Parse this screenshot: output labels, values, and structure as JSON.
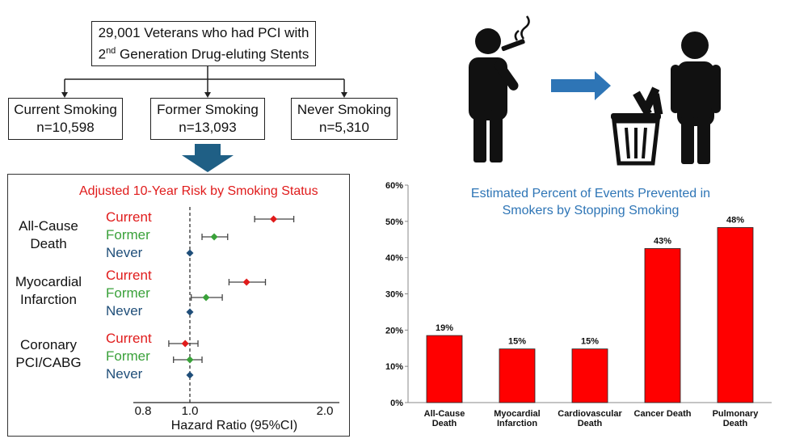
{
  "flow": {
    "top_line1": "29,001 Veterans who had PCI with",
    "top_line2_pre": "2",
    "top_line2_sup": "nd",
    "top_line2_post": " Generation Drug-eluting Stents",
    "groups": [
      {
        "name": "Current Smoking",
        "n": "n=10,598"
      },
      {
        "name": "Former Smoking",
        "n": "n=13,093"
      },
      {
        "name": "Never Smoking",
        "n": "n=5,310"
      }
    ],
    "arrow_color": "#1f5f85"
  },
  "forest": {
    "title": "Adjusted 10-Year Risk by Smoking Status",
    "xlabel": "Hazard Ratio (95%CI)",
    "xticks": [
      "0.8",
      "1.0",
      "2.0"
    ],
    "colors": {
      "Current": "#e01b1b",
      "Former": "#3aa13a",
      "Never": "#1f4e79"
    },
    "groups": [
      {
        "label1": "All-Cause",
        "label2": "Death",
        "rows": [
          {
            "status": "Current",
            "hr": 1.62,
            "lo": 1.48,
            "hi": 1.77
          },
          {
            "status": "Former",
            "hr": 1.18,
            "lo": 1.09,
            "hi": 1.28
          },
          {
            "status": "Never",
            "hr": 1.0,
            "lo": 1.0,
            "hi": 1.0
          }
        ]
      },
      {
        "label1": "Myocardial",
        "label2": "Infarction",
        "rows": [
          {
            "status": "Current",
            "hr": 1.42,
            "lo": 1.29,
            "hi": 1.56
          },
          {
            "status": "Former",
            "hr": 1.12,
            "lo": 1.01,
            "hi": 1.24
          },
          {
            "status": "Never",
            "hr": 1.0,
            "lo": 1.0,
            "hi": 1.0
          }
        ]
      },
      {
        "label1": "Coronary",
        "label2": "PCI/CABG",
        "rows": [
          {
            "status": "Current",
            "hr": 0.98,
            "lo": 0.91,
            "hi": 1.06
          },
          {
            "status": "Former",
            "hr": 1.0,
            "lo": 0.93,
            "hi": 1.09
          },
          {
            "status": "Never",
            "hr": 1.0,
            "lo": 1.0,
            "hi": 1.0
          }
        ]
      }
    ]
  },
  "chart_data": {
    "type": "bar",
    "title_line1": "Estimated Percent of Events Prevented in",
    "title_line2": "Smokers by Stopping Smoking",
    "categories": [
      [
        "All-Cause",
        "Death"
      ],
      [
        "Myocardial",
        "Infarction"
      ],
      [
        "Cardiovascular",
        "Death"
      ],
      [
        "Cancer Death"
      ],
      [
        "Pulmonary",
        "Death"
      ]
    ],
    "values": [
      18.5,
      14.8,
      14.8,
      42.5,
      48.3
    ],
    "data_labels": [
      "19%",
      "15%",
      "15%",
      "43%",
      "48%"
    ],
    "yticks": [
      "0%",
      "10%",
      "20%",
      "30%",
      "40%",
      "50%",
      "60%"
    ],
    "ylim": [
      0,
      60
    ],
    "bar_color": "#ff0000",
    "title_color": "#2e75b6",
    "grid": false
  },
  "icons": {
    "smoker": "smoking-person-icon",
    "arrow": "right-arrow-icon",
    "trash": "trash-can-cigarettes-icon",
    "person": "standing-person-icon",
    "arrow_color": "#2e75b6"
  }
}
